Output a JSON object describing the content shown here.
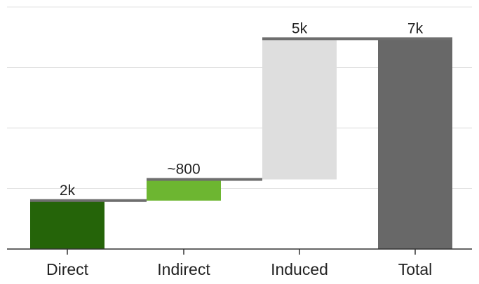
{
  "chart_data": {
    "type": "bar",
    "subtype": "waterfall",
    "categories": [
      "Direct",
      "Indirect",
      "Induced",
      "Total"
    ],
    "steps": [
      {
        "name": "Direct",
        "start": 0,
        "end": 1600,
        "label": "2k",
        "color": "#256409"
      },
      {
        "name": "Indirect",
        "start": 1600,
        "end": 2300,
        "label": "~800",
        "color": "#6db631"
      },
      {
        "name": "Induced",
        "start": 2300,
        "end": 6950,
        "label": "5k",
        "color": "#dedede"
      },
      {
        "name": "Total",
        "start": 0,
        "end": 6950,
        "label": "7k",
        "color": "#686868"
      }
    ],
    "ylim": [
      0,
      8000
    ],
    "gridlines": [
      2000,
      4000,
      6000,
      8000
    ],
    "grid": true,
    "connector_color": "#6e6e6e",
    "xlabel": "",
    "ylabel": ""
  }
}
